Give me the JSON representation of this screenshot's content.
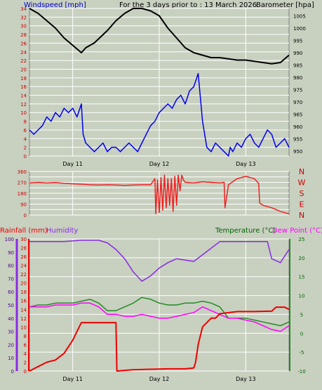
{
  "header": {
    "left_label": "Windspeed [mph]",
    "center_label": "For the 3 days prior to : 13 March 2026",
    "right_label": "Barometer [hpa]"
  },
  "panel3_header": {
    "rainfall_label": "Rainfall (mm)",
    "humidity_label": "Humidity",
    "temperature_label": "Temperature (°C)",
    "dewpoint_label": "Dew Point (°C)"
  },
  "colors": {
    "background": "#c8d0c0",
    "wind": "#0000ee",
    "barometer": "#000000",
    "direction": "#ee2222",
    "rain": "#ee0000",
    "humidity": "#8a2be2",
    "temperature": "#228b22",
    "dewpoint": "#ff00ff",
    "grid": "#ffffff"
  },
  "chart_data": [
    {
      "type": "line",
      "name_ref": "wind-barometer",
      "x_categories": [
        "Day 11",
        "Day 12",
        "Day 13"
      ],
      "x_range_days": [
        10.0,
        13.0
      ],
      "y_left": {
        "label": "Windspeed [mph]",
        "range": [
          0,
          34
        ],
        "ticks": [
          0,
          2,
          4,
          6,
          8,
          10,
          12,
          14,
          16,
          18,
          20,
          22,
          24,
          26,
          28,
          30,
          32,
          34
        ]
      },
      "y_right": {
        "label": "Barometer [hpa]",
        "range": [
          948,
          1008
        ],
        "ticks": [
          950,
          955,
          960,
          965,
          970,
          975,
          980,
          985,
          990,
          995,
          1000,
          1005
        ]
      },
      "series": [
        {
          "name": "Windspeed",
          "axis": "left",
          "x": [
            10.0,
            10.05,
            10.1,
            10.15,
            10.2,
            10.25,
            10.3,
            10.35,
            10.4,
            10.45,
            10.5,
            10.55,
            10.6,
            10.62,
            10.65,
            10.7,
            10.75,
            10.8,
            10.85,
            10.9,
            10.95,
            11.0,
            11.05,
            11.1,
            11.15,
            11.2,
            11.25,
            11.3,
            11.35,
            11.4,
            11.45,
            11.5,
            11.55,
            11.6,
            11.65,
            11.7,
            11.75,
            11.8,
            11.85,
            11.9,
            11.95,
            12.0,
            12.05,
            12.1,
            12.15,
            12.2,
            12.25,
            12.3,
            12.32,
            12.35,
            12.4,
            12.45,
            12.5,
            12.55,
            12.6,
            12.65,
            12.7,
            12.75,
            12.8,
            12.85,
            12.9,
            12.95,
            13.0
          ],
          "y": [
            6,
            5,
            6,
            7,
            9,
            8,
            10,
            9,
            11,
            10,
            11,
            9,
            12,
            5,
            3,
            2,
            1,
            2,
            3,
            1,
            2,
            2,
            1,
            2,
            3,
            2,
            1,
            3,
            5,
            7,
            8,
            10,
            11,
            12,
            11,
            13,
            14,
            12,
            15,
            16,
            19,
            8,
            2,
            1,
            3,
            2,
            1,
            0,
            2,
            1,
            3,
            2,
            4,
            5,
            3,
            2,
            4,
            6,
            5,
            2,
            3,
            4,
            2
          ]
        },
        {
          "name": "Barometer",
          "axis": "right",
          "x": [
            10.0,
            10.1,
            10.2,
            10.3,
            10.4,
            10.5,
            10.6,
            10.65,
            10.75,
            10.9,
            11.0,
            11.1,
            11.2,
            11.3,
            11.4,
            11.5,
            11.6,
            11.7,
            11.8,
            11.9,
            12.0,
            12.1,
            12.2,
            12.3,
            12.4,
            12.5,
            12.6,
            12.7,
            12.8,
            12.9,
            13.0
          ],
          "y": [
            1008,
            1006,
            1003,
            1000,
            996,
            993,
            990,
            992,
            994,
            999,
            1003,
            1006,
            1008,
            1008,
            1007,
            1005,
            1000,
            996,
            992,
            990,
            989,
            988,
            988,
            987.5,
            987,
            987,
            986.5,
            986,
            985.5,
            986,
            989
          ]
        }
      ]
    },
    {
      "type": "line",
      "name_ref": "wind-direction",
      "x_categories": [
        "Day 11",
        "Day 12",
        "Day 13"
      ],
      "x_range_days": [
        10.0,
        13.0
      ],
      "y_left": {
        "range": [
          0,
          360
        ],
        "ticks": [
          0,
          45,
          90,
          135,
          180,
          225,
          270,
          315,
          360
        ]
      },
      "y_right": {
        "compass": [
          "N",
          "W",
          "S",
          "E",
          "N"
        ]
      },
      "series": [
        {
          "name": "Direction",
          "x": [
            10.0,
            10.1,
            10.2,
            10.3,
            10.4,
            10.5,
            10.6,
            10.7,
            10.8,
            10.9,
            11.0,
            11.1,
            11.2,
            11.3,
            11.4,
            11.45,
            11.46,
            11.48,
            11.5,
            11.52,
            11.54,
            11.56,
            11.58,
            11.6,
            11.62,
            11.64,
            11.66,
            11.68,
            11.7,
            11.72,
            11.74,
            11.76,
            11.78,
            11.8,
            11.9,
            12.0,
            12.1,
            12.2,
            12.25,
            12.26,
            12.3,
            12.4,
            12.5,
            12.6,
            12.65,
            12.66,
            12.7,
            12.8,
            12.9,
            13.0
          ],
          "y": [
            265,
            270,
            265,
            268,
            262,
            258,
            255,
            250,
            248,
            250,
            248,
            245,
            248,
            250,
            250,
            300,
            10,
            290,
            20,
            310,
            40,
            330,
            60,
            300,
            80,
            300,
            30,
            320,
            80,
            330,
            200,
            330,
            290,
            270,
            265,
            275,
            270,
            265,
            270,
            60,
            250,
            300,
            320,
            300,
            260,
            100,
            80,
            60,
            30,
            10
          ]
        }
      ]
    },
    {
      "type": "line",
      "name_ref": "rain-humidity-temperature",
      "x_categories": [
        "Day 11",
        "Day 12",
        "Day 13"
      ],
      "x_range_days": [
        10.0,
        13.0
      ],
      "y_rain": {
        "label": "Rainfall (mm)",
        "range": [
          0,
          30
        ],
        "ticks": [
          0,
          2,
          4,
          6,
          8,
          10,
          12,
          14,
          16,
          18,
          20,
          22,
          24,
          26,
          28,
          30
        ]
      },
      "y_humidity": {
        "label": "Humidity",
        "range": [
          0,
          100
        ],
        "ticks": [
          0,
          5,
          10,
          15,
          20,
          25,
          30,
          35,
          40,
          45,
          50,
          55,
          60,
          65,
          70,
          75,
          80,
          85,
          90,
          95,
          100
        ]
      },
      "y_temp": {
        "label": "Temperature (°C)",
        "range": [
          -10,
          25
        ],
        "ticks": [
          -10,
          -5,
          0,
          5,
          10,
          15,
          20,
          25
        ]
      },
      "series": [
        {
          "name": "Rainfall",
          "axis": "rain",
          "x": [
            10.0,
            10.1,
            10.2,
            10.3,
            10.4,
            10.5,
            10.55,
            10.6,
            10.7,
            10.8,
            10.9,
            11.0,
            11.01,
            11.2,
            11.4,
            11.6,
            11.8,
            11.9,
            11.92,
            11.95,
            12.0,
            12.05,
            12.1,
            12.15,
            12.2,
            12.4,
            12.6,
            12.8,
            12.85,
            12.95,
            13.0
          ],
          "y": [
            0,
            1,
            2,
            2.5,
            4,
            7,
            9,
            11,
            11,
            11,
            11,
            11,
            0,
            0.3,
            0.4,
            0.5,
            0.5,
            0.7,
            2,
            6,
            10,
            11,
            12,
            12,
            13,
            13.5,
            13.5,
            13.6,
            14.5,
            14.5,
            14
          ]
        },
        {
          "name": "Humidity",
          "axis": "humidity",
          "x": [
            10.0,
            10.2,
            10.4,
            10.6,
            10.8,
            10.9,
            11.0,
            11.1,
            11.2,
            11.3,
            11.4,
            11.5,
            11.6,
            11.7,
            11.8,
            11.9,
            12.0,
            12.2,
            12.4,
            12.6,
            12.75,
            12.8,
            12.9,
            13.0
          ],
          "y": [
            98,
            98,
            98,
            99,
            99,
            97,
            92,
            85,
            75,
            68,
            72,
            78,
            82,
            85,
            84,
            83,
            88,
            98,
            98,
            98,
            98,
            85,
            82,
            92
          ]
        },
        {
          "name": "Temperature",
          "axis": "temp",
          "x": [
            10.0,
            10.1,
            10.2,
            10.3,
            10.4,
            10.5,
            10.6,
            10.7,
            10.8,
            10.9,
            11.0,
            11.1,
            11.2,
            11.3,
            11.4,
            11.5,
            11.6,
            11.7,
            11.8,
            11.9,
            12.0,
            12.1,
            12.2,
            12.3,
            12.4,
            12.5,
            12.6,
            12.7,
            12.8,
            12.9,
            13.0
          ],
          "y": [
            7,
            7.5,
            7.5,
            8,
            8,
            8,
            8.5,
            9,
            8,
            6,
            6,
            7,
            8,
            9.5,
            9,
            8,
            7.5,
            7.5,
            8,
            8,
            8.5,
            8,
            7,
            4,
            4,
            4,
            3.5,
            3,
            2.5,
            2,
            3
          ]
        },
        {
          "name": "Dew Point",
          "axis": "temp",
          "x": [
            10.0,
            10.1,
            10.2,
            10.3,
            10.4,
            10.5,
            10.6,
            10.7,
            10.8,
            10.9,
            11.0,
            11.1,
            11.2,
            11.3,
            11.4,
            11.5,
            11.6,
            11.7,
            11.8,
            11.9,
            12.0,
            12.1,
            12.2,
            12.3,
            12.4,
            12.5,
            12.6,
            12.7,
            12.8,
            12.9,
            13.0
          ],
          "y": [
            7,
            7,
            7,
            7.5,
            7.5,
            7.5,
            8,
            8,
            7,
            5,
            5,
            4.5,
            4.5,
            5,
            4.5,
            4,
            4,
            4.5,
            5,
            5.5,
            7,
            6,
            5,
            4,
            4,
            3.5,
            3,
            2,
            1,
            0.5,
            2
          ]
        }
      ]
    }
  ]
}
